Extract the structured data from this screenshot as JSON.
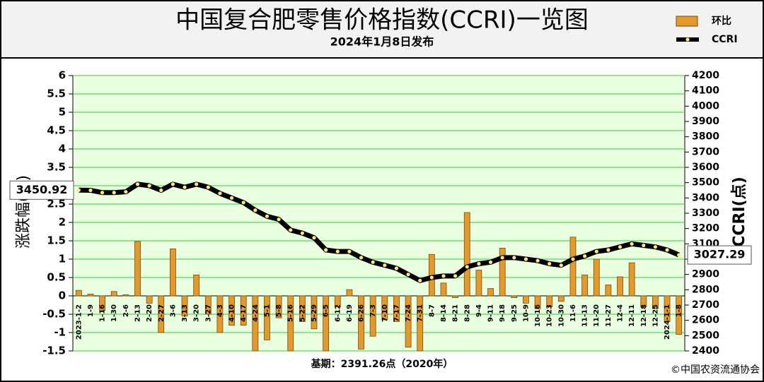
{
  "chart_data": {
    "type": "bar-line",
    "title": "中国复合肥零售价格指数(CCRI)一览图",
    "subtitle": "2024年1月8日发布",
    "y_label": "涨跌幅(%)",
    "y2_label": "CCRI(点)",
    "base_note": "基期：2391.26点（2020年）",
    "source": "©中国农资流通协会",
    "categories": [
      "2023-1-2",
      "1-9",
      "1-16",
      "1-30",
      "2-6",
      "2-13",
      "2-20",
      "2-27",
      "3-6",
      "3-13",
      "3-20",
      "3-27",
      "4-3",
      "4-10",
      "4-17",
      "4-24",
      "5-1",
      "5-8",
      "5-16",
      "5-22",
      "5-29",
      "6-5",
      "6-12",
      "6-19",
      "6-26",
      "7-3",
      "7-10",
      "7-17",
      "7-24",
      "7-31",
      "8-7",
      "8-14",
      "8-21",
      "8-28",
      "9-4",
      "9-11",
      "9-18",
      "9-25",
      "10-9",
      "10-16",
      "10-23",
      "10-30",
      "11-6",
      "11-13",
      "11-20",
      "11-27",
      "12-4",
      "12-11",
      "12-18",
      "12-25",
      "2024-1-1",
      "1-8"
    ],
    "series": [
      {
        "name": "环比",
        "type": "bar",
        "color": "#e39a2c",
        "values": [
          0.15,
          0.05,
          -0.4,
          0.12,
          0.03,
          1.48,
          -0.2,
          -1.0,
          1.28,
          -0.55,
          0.57,
          -0.5,
          -1.0,
          -0.8,
          -0.8,
          -1.5,
          -1.2,
          -0.6,
          -1.5,
          -0.7,
          -0.9,
          -1.5,
          -0.3,
          0.17,
          -1.45,
          -1.1,
          -0.65,
          -0.7,
          -1.4,
          -1.5,
          1.13,
          0.35,
          -0.05,
          2.27,
          0.7,
          0.2,
          1.3,
          -0.05,
          -0.2,
          -0.35,
          -0.3,
          -0.15,
          1.6,
          0.57,
          1.0,
          0.3,
          0.52,
          0.9,
          -0.3,
          -0.35,
          -0.7,
          -1.05
        ]
      },
      {
        "name": "CCRI",
        "type": "line",
        "axis": "y2",
        "color": "#000000",
        "values": [
          3450.92,
          3450,
          3435,
          3435,
          3440,
          3490,
          3480,
          3450,
          3490,
          3470,
          3490,
          3470,
          3430,
          3400,
          3370,
          3320,
          3280,
          3260,
          3190,
          3170,
          3140,
          3060,
          3050,
          3050,
          3010,
          2980,
          2960,
          2940,
          2900,
          2860,
          2880,
          2890,
          2890,
          2950,
          2970,
          2980,
          3010,
          3010,
          3000,
          2990,
          2970,
          2960,
          3000,
          3020,
          3050,
          3060,
          3080,
          3100,
          3090,
          3080,
          3060,
          3027.29
        ]
      }
    ],
    "ylim": [
      -1.5,
      6
    ],
    "yticks": [
      -1.5,
      -1,
      -0.5,
      0,
      0.5,
      1,
      1.5,
      2,
      2.5,
      3,
      3.5,
      4,
      4.5,
      5,
      5.5,
      6
    ],
    "y2lim": [
      2400,
      4200
    ],
    "y2ticks": [
      2400,
      2500,
      2600,
      2700,
      2800,
      2900,
      3000,
      3100,
      3200,
      3300,
      3400,
      3500,
      3600,
      3700,
      3800,
      3900,
      4000,
      4100,
      4200
    ],
    "grid": true,
    "legend": "top-right"
  }
}
